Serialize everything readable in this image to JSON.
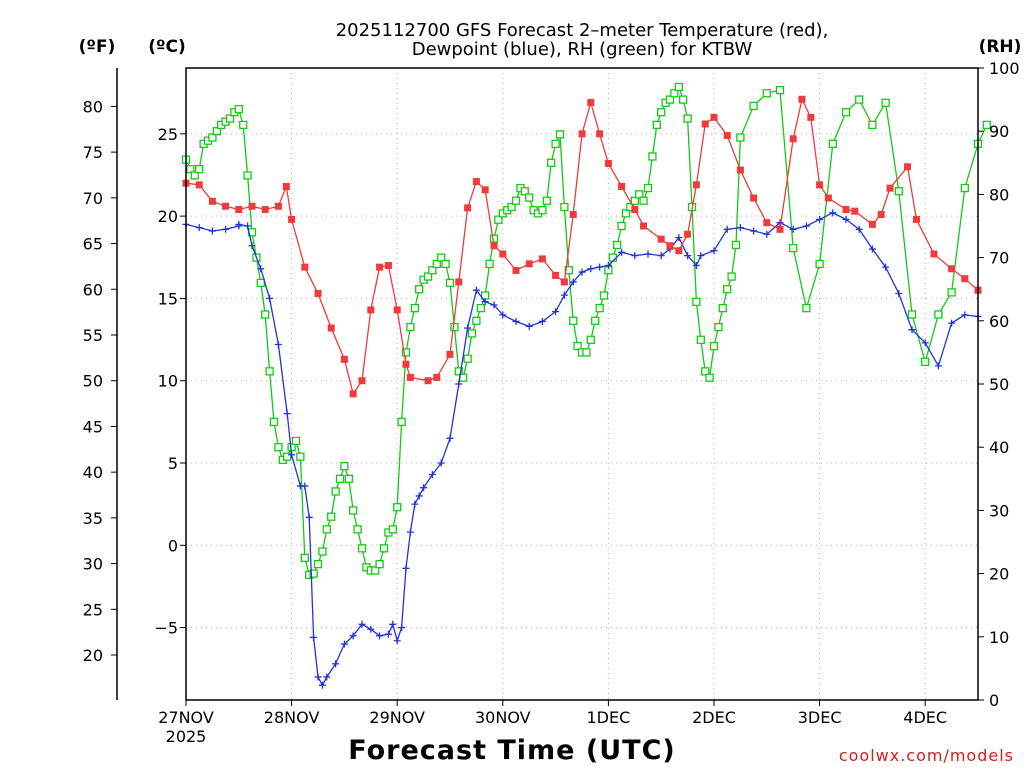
{
  "chart_data": {
    "type": "line",
    "title": "2025112700 GFS Forecast 2–meter Temperature (red),",
    "subtitle": "Dewpoint (blue), RH (green) for KTBW",
    "xlabel": "Forecast Time (UTC)",
    "x_tick_labels": [
      "27NOV",
      "28NOV",
      "29NOV",
      "30NOV",
      "1DEC",
      "2DEC",
      "3DEC",
      "4DEC"
    ],
    "x_year_label": "2025",
    "x_unit": "days since 2025-11-27 00Z",
    "xlim": [
      0,
      7.5
    ],
    "axes": {
      "fahrenheit": {
        "label": "(ºF)",
        "ticks": [
          20,
          25,
          30,
          35,
          40,
          45,
          50,
          55,
          60,
          65,
          70,
          75,
          80
        ]
      },
      "celsius": {
        "label": "(ºC)",
        "ylim": [
          -9.4,
          29
        ],
        "ticks": [
          -5,
          0,
          5,
          10,
          15,
          20,
          25
        ]
      },
      "rh": {
        "label": "(RH)",
        "ylim": [
          0,
          100
        ],
        "ticks": [
          0,
          10,
          20,
          30,
          40,
          50,
          60,
          70,
          80,
          90,
          100
        ]
      }
    },
    "series": [
      {
        "name": "Temperature",
        "unit": "°C",
        "axis": "celsius",
        "color": "#ee3b3b",
        "marker": "filled-square",
        "points": [
          [
            0,
            22.0
          ],
          [
            0.125,
            21.9
          ],
          [
            0.25,
            20.9
          ],
          [
            0.375,
            20.6
          ],
          [
            0.5,
            20.4
          ],
          [
            0.625,
            20.6
          ],
          [
            0.75,
            20.4
          ],
          [
            0.875,
            20.6
          ],
          [
            0.95,
            21.8
          ],
          [
            1.0,
            19.8
          ],
          [
            1.125,
            16.9
          ],
          [
            1.25,
            15.3
          ],
          [
            1.375,
            13.2
          ],
          [
            1.5,
            11.3
          ],
          [
            1.583,
            9.2
          ],
          [
            1.667,
            10.0
          ],
          [
            1.75,
            14.3
          ],
          [
            1.833,
            16.9
          ],
          [
            1.917,
            17.0
          ],
          [
            2.0,
            14.3
          ],
          [
            2.083,
            11.0
          ],
          [
            2.125,
            10.2
          ],
          [
            2.292,
            10.0
          ],
          [
            2.375,
            10.2
          ],
          [
            2.5,
            11.6
          ],
          [
            2.583,
            16.0
          ],
          [
            2.667,
            20.5
          ],
          [
            2.75,
            22.1
          ],
          [
            2.833,
            21.6
          ],
          [
            2.917,
            18.2
          ],
          [
            3.0,
            17.7
          ],
          [
            3.125,
            16.7
          ],
          [
            3.25,
            17.1
          ],
          [
            3.375,
            17.4
          ],
          [
            3.5,
            16.4
          ],
          [
            3.583,
            16.0
          ],
          [
            3.667,
            20.1
          ],
          [
            3.75,
            25.0
          ],
          [
            3.833,
            26.9
          ],
          [
            3.917,
            25.0
          ],
          [
            4.0,
            23.2
          ],
          [
            4.125,
            21.8
          ],
          [
            4.25,
            20.4
          ],
          [
            4.333,
            19.4
          ],
          [
            4.5,
            18.6
          ],
          [
            4.583,
            18.2
          ],
          [
            4.667,
            17.9
          ],
          [
            4.75,
            18.9
          ],
          [
            4.833,
            21.9
          ],
          [
            4.917,
            25.6
          ],
          [
            5.0,
            26.0
          ],
          [
            5.125,
            24.9
          ],
          [
            5.25,
            22.8
          ],
          [
            5.375,
            21.1
          ],
          [
            5.5,
            19.6
          ],
          [
            5.625,
            19.2
          ],
          [
            5.75,
            24.7
          ],
          [
            5.833,
            27.1
          ],
          [
            5.917,
            26.0
          ],
          [
            6.0,
            21.9
          ],
          [
            6.083,
            21.1
          ],
          [
            6.25,
            20.4
          ],
          [
            6.333,
            20.3
          ],
          [
            6.5,
            19.5
          ],
          [
            6.583,
            20.1
          ],
          [
            6.667,
            21.7
          ],
          [
            6.833,
            23.0
          ],
          [
            6.917,
            19.8
          ],
          [
            7.083,
            17.7
          ],
          [
            7.25,
            16.8
          ],
          [
            7.375,
            16.2
          ],
          [
            7.5,
            15.5
          ]
        ]
      },
      {
        "name": "Dewpoint",
        "unit": "°C",
        "axis": "celsius",
        "color": "#2233dd",
        "marker": "plus",
        "points": [
          [
            0,
            19.5
          ],
          [
            0.125,
            19.3
          ],
          [
            0.25,
            19.1
          ],
          [
            0.375,
            19.2
          ],
          [
            0.5,
            19.4
          ],
          [
            0.5,
            19.5
          ],
          [
            0.583,
            19.4
          ],
          [
            0.625,
            18.2
          ],
          [
            0.708,
            16.8
          ],
          [
            0.792,
            15.0
          ],
          [
            0.875,
            12.2
          ],
          [
            0.958,
            8.0
          ],
          [
            1.0,
            5.5
          ],
          [
            1.083,
            3.6
          ],
          [
            1.125,
            3.6
          ],
          [
            1.167,
            1.7
          ],
          [
            1.208,
            -5.6
          ],
          [
            1.25,
            -8.0
          ],
          [
            1.292,
            -8.5
          ],
          [
            1.333,
            -8.0
          ],
          [
            1.417,
            -7.2
          ],
          [
            1.5,
            -6.0
          ],
          [
            1.583,
            -5.5
          ],
          [
            1.667,
            -4.8
          ],
          [
            1.75,
            -5.1
          ],
          [
            1.833,
            -5.5
          ],
          [
            1.917,
            -5.4
          ],
          [
            1.958,
            -4.8
          ],
          [
            2.0,
            -5.8
          ],
          [
            2.042,
            -5.0
          ],
          [
            2.083,
            -1.4
          ],
          [
            2.125,
            0.8
          ],
          [
            2.167,
            2.5
          ],
          [
            2.208,
            3.0
          ],
          [
            2.25,
            3.5
          ],
          [
            2.333,
            4.3
          ],
          [
            2.417,
            5.0
          ],
          [
            2.5,
            6.5
          ],
          [
            2.583,
            9.8
          ],
          [
            2.667,
            13.2
          ],
          [
            2.75,
            15.5
          ],
          [
            2.833,
            14.8
          ],
          [
            2.917,
            14.6
          ],
          [
            3.0,
            14.0
          ],
          [
            3.125,
            13.6
          ],
          [
            3.25,
            13.3
          ],
          [
            3.375,
            13.6
          ],
          [
            3.5,
            14.2
          ],
          [
            3.583,
            15.2
          ],
          [
            3.667,
            16.0
          ],
          [
            3.75,
            16.6
          ],
          [
            3.833,
            16.8
          ],
          [
            3.917,
            16.9
          ],
          [
            4.0,
            17.0
          ],
          [
            4.125,
            17.8
          ],
          [
            4.25,
            17.6
          ],
          [
            4.375,
            17.7
          ],
          [
            4.5,
            17.6
          ],
          [
            4.583,
            18.0
          ],
          [
            4.667,
            18.7
          ],
          [
            4.75,
            17.6
          ],
          [
            4.833,
            17.0
          ],
          [
            4.875,
            17.6
          ],
          [
            5.0,
            17.9
          ],
          [
            5.125,
            19.2
          ],
          [
            5.25,
            19.3
          ],
          [
            5.375,
            19.1
          ],
          [
            5.5,
            18.9
          ],
          [
            5.625,
            19.6
          ],
          [
            5.75,
            19.2
          ],
          [
            5.875,
            19.4
          ],
          [
            6.0,
            19.8
          ],
          [
            6.125,
            20.2
          ],
          [
            6.25,
            19.8
          ],
          [
            6.375,
            19.2
          ],
          [
            6.5,
            18.0
          ],
          [
            6.625,
            16.9
          ],
          [
            6.75,
            15.3
          ],
          [
            6.875,
            13.1
          ],
          [
            7.0,
            12.3
          ],
          [
            7.125,
            10.9
          ],
          [
            7.25,
            13.5
          ],
          [
            7.375,
            14.0
          ],
          [
            7.5,
            13.9
          ]
        ]
      },
      {
        "name": "RH",
        "unit": "%",
        "axis": "rh",
        "color": "#11cc11",
        "marker": "open-square",
        "points": [
          [
            0,
            85.5
          ],
          [
            0.042,
            84
          ],
          [
            0.083,
            83
          ],
          [
            0.125,
            84
          ],
          [
            0.167,
            88
          ],
          [
            0.208,
            88.5
          ],
          [
            0.25,
            89
          ],
          [
            0.292,
            90
          ],
          [
            0.333,
            91
          ],
          [
            0.375,
            91.5
          ],
          [
            0.417,
            92
          ],
          [
            0.458,
            93
          ],
          [
            0.5,
            93.5
          ],
          [
            0.542,
            91
          ],
          [
            0.583,
            83
          ],
          [
            0.625,
            74
          ],
          [
            0.667,
            70
          ],
          [
            0.708,
            66
          ],
          [
            0.75,
            61
          ],
          [
            0.792,
            52
          ],
          [
            0.833,
            44
          ],
          [
            0.875,
            40
          ],
          [
            0.917,
            38
          ],
          [
            0.958,
            38.5
          ],
          [
            1.0,
            40
          ],
          [
            1.042,
            41
          ],
          [
            1.083,
            38.5
          ],
          [
            1.125,
            22.5
          ],
          [
            1.167,
            19.8
          ],
          [
            1.208,
            20
          ],
          [
            1.25,
            21.5
          ],
          [
            1.292,
            23.5
          ],
          [
            1.333,
            27
          ],
          [
            1.375,
            29
          ],
          [
            1.417,
            33
          ],
          [
            1.458,
            35
          ],
          [
            1.5,
            37
          ],
          [
            1.542,
            35
          ],
          [
            1.583,
            30
          ],
          [
            1.625,
            27
          ],
          [
            1.667,
            24
          ],
          [
            1.708,
            21
          ],
          [
            1.75,
            20.5
          ],
          [
            1.792,
            20.5
          ],
          [
            1.833,
            21.5
          ],
          [
            1.875,
            24
          ],
          [
            1.917,
            26.5
          ],
          [
            1.958,
            27
          ],
          [
            2.0,
            30.5
          ],
          [
            2.042,
            44
          ],
          [
            2.083,
            55
          ],
          [
            2.125,
            59
          ],
          [
            2.167,
            62
          ],
          [
            2.208,
            65
          ],
          [
            2.25,
            66.5
          ],
          [
            2.292,
            67
          ],
          [
            2.333,
            68
          ],
          [
            2.375,
            69
          ],
          [
            2.417,
            70
          ],
          [
            2.458,
            69
          ],
          [
            2.5,
            66
          ],
          [
            2.542,
            59
          ],
          [
            2.583,
            52
          ],
          [
            2.625,
            51
          ],
          [
            2.667,
            54
          ],
          [
            2.708,
            58
          ],
          [
            2.75,
            60
          ],
          [
            2.792,
            62
          ],
          [
            2.833,
            64
          ],
          [
            2.875,
            69
          ],
          [
            2.917,
            73
          ],
          [
            2.958,
            76
          ],
          [
            3.0,
            77
          ],
          [
            3.042,
            77.5
          ],
          [
            3.083,
            78
          ],
          [
            3.125,
            79
          ],
          [
            3.167,
            81
          ],
          [
            3.208,
            80.5
          ],
          [
            3.25,
            79.5
          ],
          [
            3.292,
            77.5
          ],
          [
            3.333,
            77
          ],
          [
            3.375,
            77.5
          ],
          [
            3.417,
            79
          ],
          [
            3.458,
            85
          ],
          [
            3.5,
            88
          ],
          [
            3.542,
            89.5
          ],
          [
            3.583,
            78
          ],
          [
            3.625,
            68
          ],
          [
            3.667,
            60
          ],
          [
            3.708,
            56
          ],
          [
            3.75,
            55
          ],
          [
            3.792,
            55
          ],
          [
            3.833,
            57
          ],
          [
            3.875,
            60
          ],
          [
            3.917,
            62
          ],
          [
            3.958,
            64
          ],
          [
            4.0,
            68
          ],
          [
            4.042,
            70
          ],
          [
            4.083,
            72
          ],
          [
            4.125,
            75
          ],
          [
            4.167,
            77
          ],
          [
            4.208,
            78
          ],
          [
            4.25,
            79
          ],
          [
            4.292,
            80
          ],
          [
            4.333,
            79
          ],
          [
            4.375,
            81
          ],
          [
            4.417,
            86
          ],
          [
            4.458,
            91
          ],
          [
            4.5,
            93
          ],
          [
            4.542,
            94.5
          ],
          [
            4.583,
            95
          ],
          [
            4.625,
            96
          ],
          [
            4.667,
            97
          ],
          [
            4.708,
            95
          ],
          [
            4.75,
            92
          ],
          [
            4.792,
            78
          ],
          [
            4.833,
            63
          ],
          [
            4.875,
            57
          ],
          [
            4.917,
            52
          ],
          [
            4.958,
            51
          ],
          [
            5.0,
            56
          ],
          [
            5.042,
            59
          ],
          [
            5.083,
            62
          ],
          [
            5.125,
            65
          ],
          [
            5.167,
            67
          ],
          [
            5.208,
            72
          ],
          [
            5.25,
            89
          ],
          [
            5.375,
            94
          ],
          [
            5.5,
            96
          ],
          [
            5.625,
            96.5
          ],
          [
            5.75,
            71.5
          ],
          [
            5.875,
            62
          ],
          [
            6.0,
            69
          ],
          [
            6.125,
            88
          ],
          [
            6.25,
            93
          ],
          [
            6.375,
            95
          ],
          [
            6.5,
            91
          ],
          [
            6.625,
            94.5
          ],
          [
            6.75,
            80.5
          ],
          [
            6.875,
            61
          ],
          [
            7.0,
            53.5
          ],
          [
            7.125,
            61
          ],
          [
            7.25,
            64.5
          ],
          [
            7.375,
            81
          ],
          [
            7.5,
            88
          ],
          [
            7.583,
            91
          ]
        ]
      }
    ]
  },
  "footer": {
    "credit": "coolwx.com/models"
  }
}
